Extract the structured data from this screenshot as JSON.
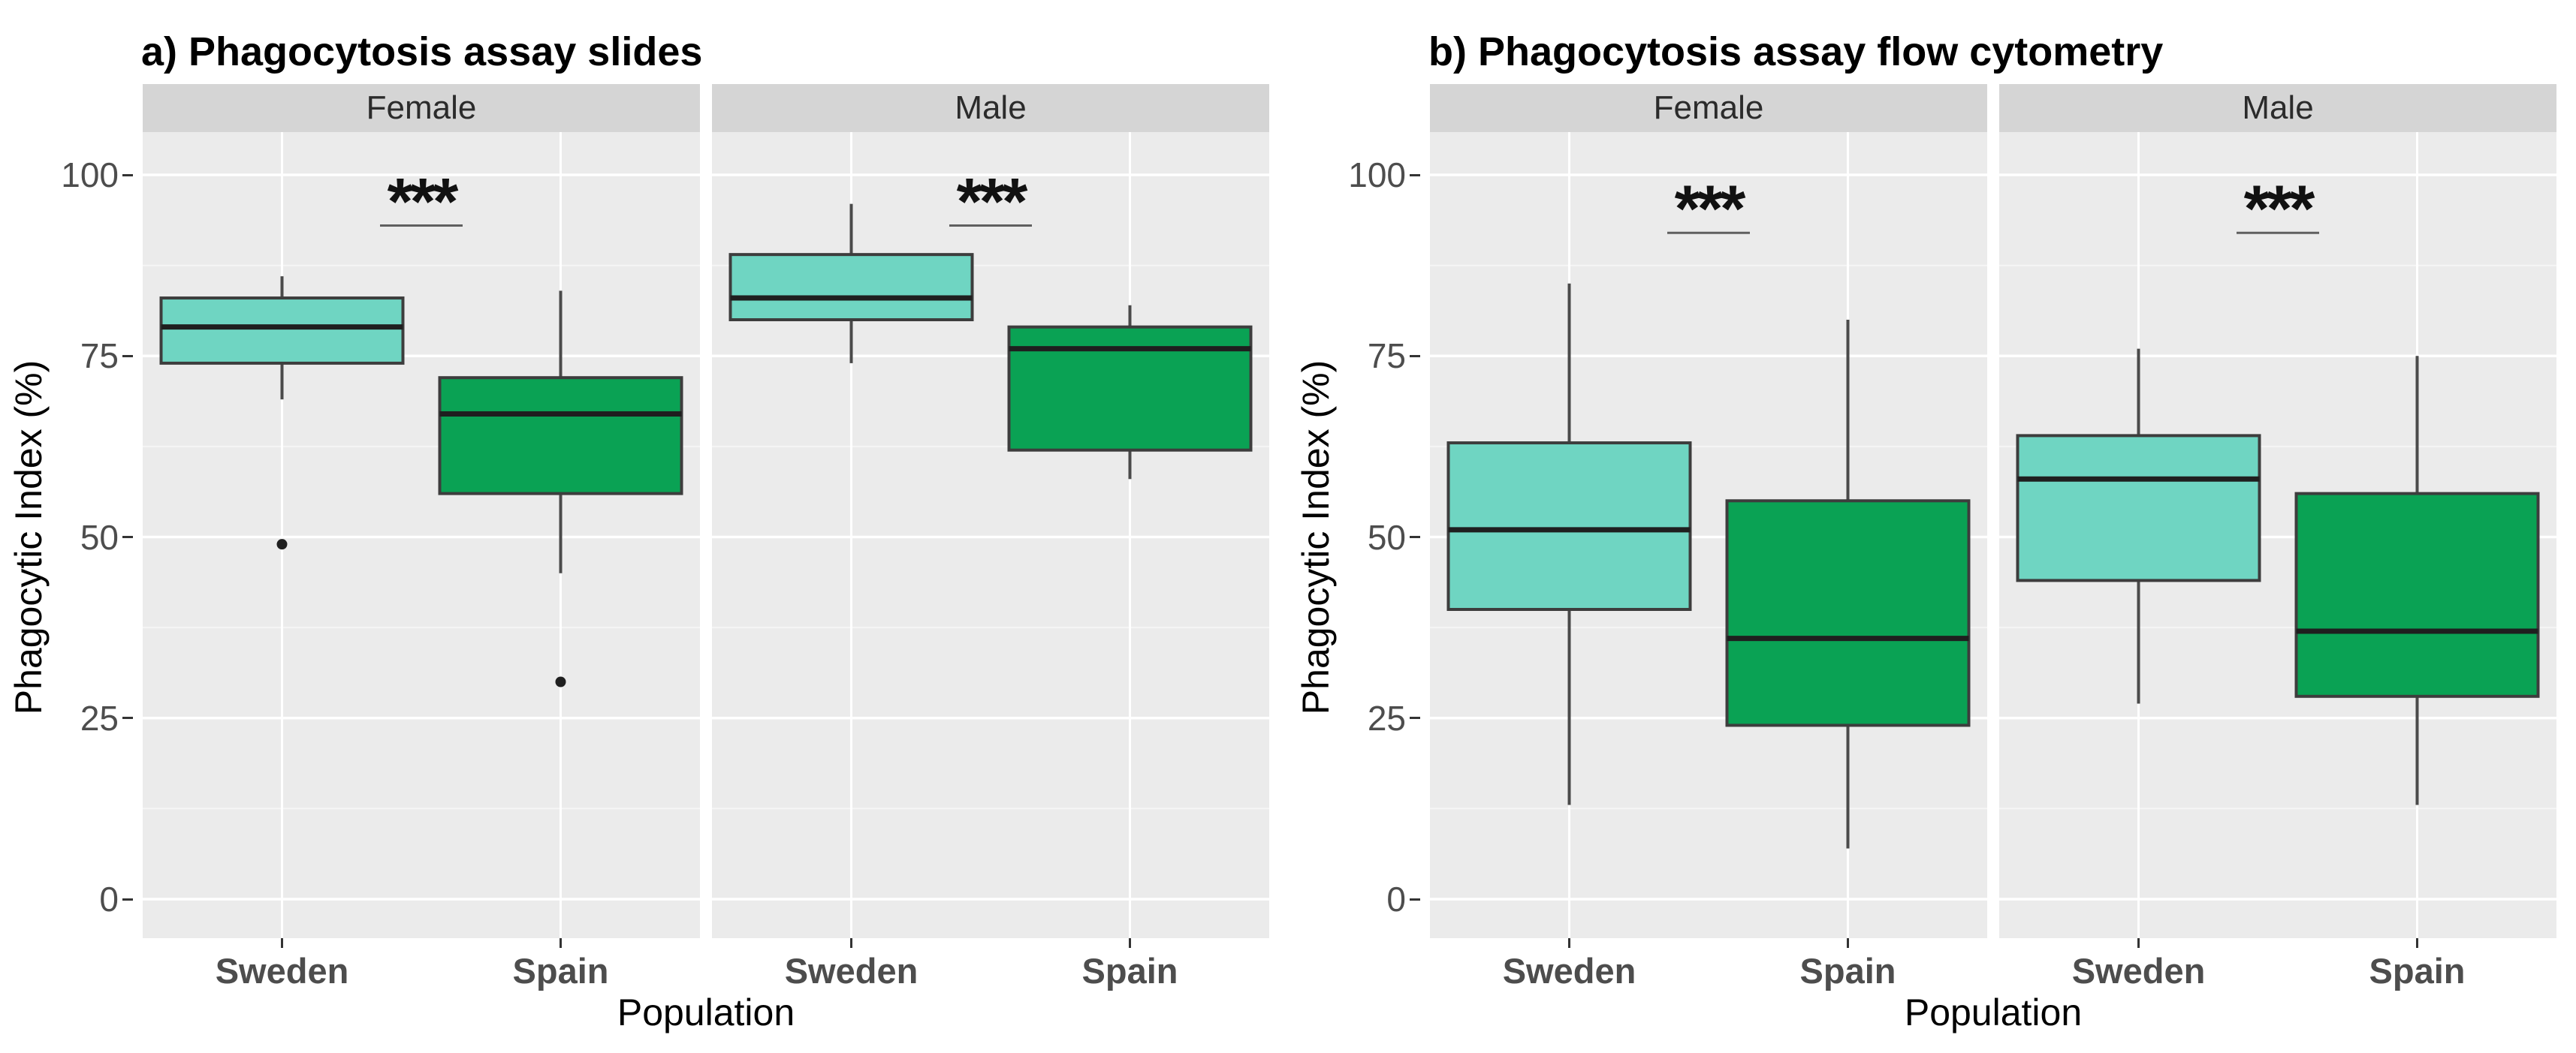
{
  "chart_data": [
    {
      "id": "a",
      "type": "boxplot",
      "title": "a) Phagocytosis assay slides",
      "xlabel": "Population",
      "ylabel": "Phagocytic Index (%)",
      "ylim": [
        0,
        100
      ],
      "yticks": [
        0,
        25,
        50,
        75,
        100
      ],
      "grid": "major-white-minor-faint",
      "legend_position": "none",
      "categories": [
        "Sweden",
        "Spain"
      ],
      "facets": [
        {
          "label": "Female",
          "significance": {
            "label": "***",
            "line_y": 93
          },
          "boxes": [
            {
              "category": "Sweden",
              "group": "sweden",
              "whisker_low": 69,
              "q1": 74,
              "median": 79,
              "q3": 83,
              "whisker_high": 86,
              "outliers": [
                49
              ]
            },
            {
              "category": "Spain",
              "group": "spain",
              "whisker_low": 45,
              "q1": 56,
              "median": 67,
              "q3": 72,
              "whisker_high": 84,
              "outliers": [
                30
              ]
            }
          ]
        },
        {
          "label": "Male",
          "significance": {
            "label": "***",
            "line_y": 93
          },
          "boxes": [
            {
              "category": "Sweden",
              "group": "sweden",
              "whisker_low": 74,
              "q1": 80,
              "median": 83,
              "q3": 89,
              "whisker_high": 96,
              "outliers": []
            },
            {
              "category": "Spain",
              "group": "spain",
              "whisker_low": 58,
              "q1": 62,
              "median": 76,
              "q3": 79,
              "whisker_high": 82,
              "outliers": []
            }
          ]
        }
      ]
    },
    {
      "id": "b",
      "type": "boxplot",
      "title": "b) Phagocytosis assay flow cytometry",
      "xlabel": "Population",
      "ylabel": "Phagocytic Index (%)",
      "ylim": [
        0,
        100
      ],
      "yticks": [
        0,
        25,
        50,
        75,
        100
      ],
      "grid": "major-white-minor-faint",
      "legend_position": "none",
      "categories": [
        "Sweden",
        "Spain"
      ],
      "facets": [
        {
          "label": "Female",
          "significance": {
            "label": "***",
            "line_y": 92
          },
          "boxes": [
            {
              "category": "Sweden",
              "group": "sweden",
              "whisker_low": 13,
              "q1": 40,
              "median": 51,
              "q3": 63,
              "whisker_high": 85,
              "outliers": []
            },
            {
              "category": "Spain",
              "group": "spain",
              "whisker_low": 7,
              "q1": 24,
              "median": 36,
              "q3": 55,
              "whisker_high": 80,
              "outliers": []
            }
          ]
        },
        {
          "label": "Male",
          "significance": {
            "label": "***",
            "line_y": 92
          },
          "boxes": [
            {
              "category": "Sweden",
              "group": "sweden",
              "whisker_low": 27,
              "q1": 44,
              "median": 58,
              "q3": 64,
              "whisker_high": 76,
              "outliers": []
            },
            {
              "category": "Spain",
              "group": "spain",
              "whisker_low": 13,
              "q1": 28,
              "median": 37,
              "q3": 56,
              "whisker_high": 75,
              "outliers": []
            }
          ]
        }
      ]
    }
  ],
  "style": {
    "sweden_fill": "#6FD5C2",
    "spain_fill": "#0AA254",
    "panel_bg": "#EBEBEB",
    "strip_bg": "#D5D5D5",
    "grid_major": "#FFFFFF",
    "grid_minor": "#F5F5F5",
    "box_stroke": "#3D3D3D",
    "median_stroke": "#1F1F1F",
    "whisker_stroke": "#4A4A4A",
    "outlier_fill": "#1F1F1F",
    "sig_line": "#5F5F5F",
    "sig_text": "#111111",
    "axis_text": "#4D4D4D",
    "tick_mark": "#333333",
    "title_text": "#000000"
  }
}
